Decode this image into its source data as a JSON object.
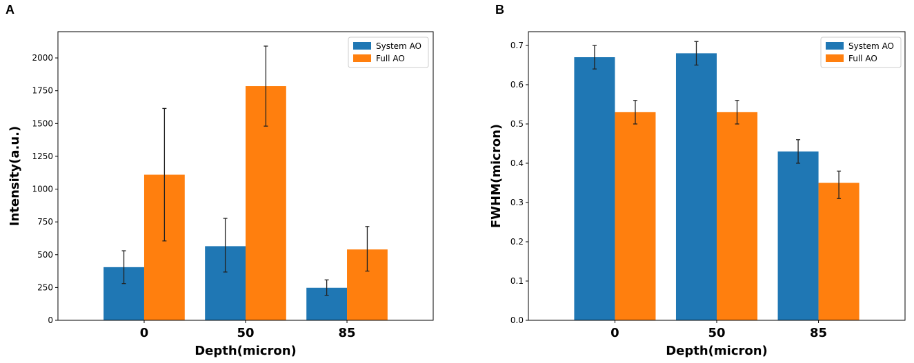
{
  "chart_data": [
    {
      "panel": "A",
      "type": "bar",
      "categories": [
        "0",
        "50",
        "85"
      ],
      "xlabel": "Depth(micron)",
      "ylabel": "Intensity(a.u.)",
      "ylim": [
        0,
        2200
      ],
      "yticks": [
        0,
        250,
        500,
        750,
        1000,
        1250,
        1500,
        1750,
        2000
      ],
      "legend_position": "top-right",
      "series": [
        {
          "name": "System AO",
          "color": "#1f77b4",
          "values": [
            405,
            565,
            248
          ],
          "err_low": [
            280,
            368,
            190
          ],
          "err_high": [
            530,
            777,
            308
          ]
        },
        {
          "name": "Full AO",
          "color": "#ff7f0e",
          "values": [
            1110,
            1785,
            540
          ],
          "err_low": [
            605,
            1480,
            375
          ],
          "err_high": [
            1615,
            2090,
            715
          ]
        }
      ]
    },
    {
      "panel": "B",
      "type": "bar",
      "categories": [
        "0",
        "50",
        "85"
      ],
      "xlabel": "Depth(micron)",
      "ylabel": "FWHM(micron)",
      "ylim": [
        0,
        0.735
      ],
      "yticks": [
        0.0,
        0.1,
        0.2,
        0.3,
        0.4,
        0.5,
        0.6,
        0.7
      ],
      "ytick_labels": [
        "0.0",
        "0.1",
        "0.2",
        "0.3",
        "0.4",
        "0.5",
        "0.6",
        "0.7"
      ],
      "legend_position": "top-right",
      "series": [
        {
          "name": "System AO",
          "color": "#1f77b4",
          "values": [
            0.67,
            0.68,
            0.43
          ],
          "err_low": [
            0.64,
            0.65,
            0.4
          ],
          "err_high": [
            0.7,
            0.71,
            0.46
          ]
        },
        {
          "name": "Full AO",
          "color": "#ff7f0e",
          "values": [
            0.53,
            0.53,
            0.35
          ],
          "err_low": [
            0.5,
            0.5,
            0.31
          ],
          "err_high": [
            0.56,
            0.56,
            0.38
          ]
        }
      ]
    }
  ]
}
